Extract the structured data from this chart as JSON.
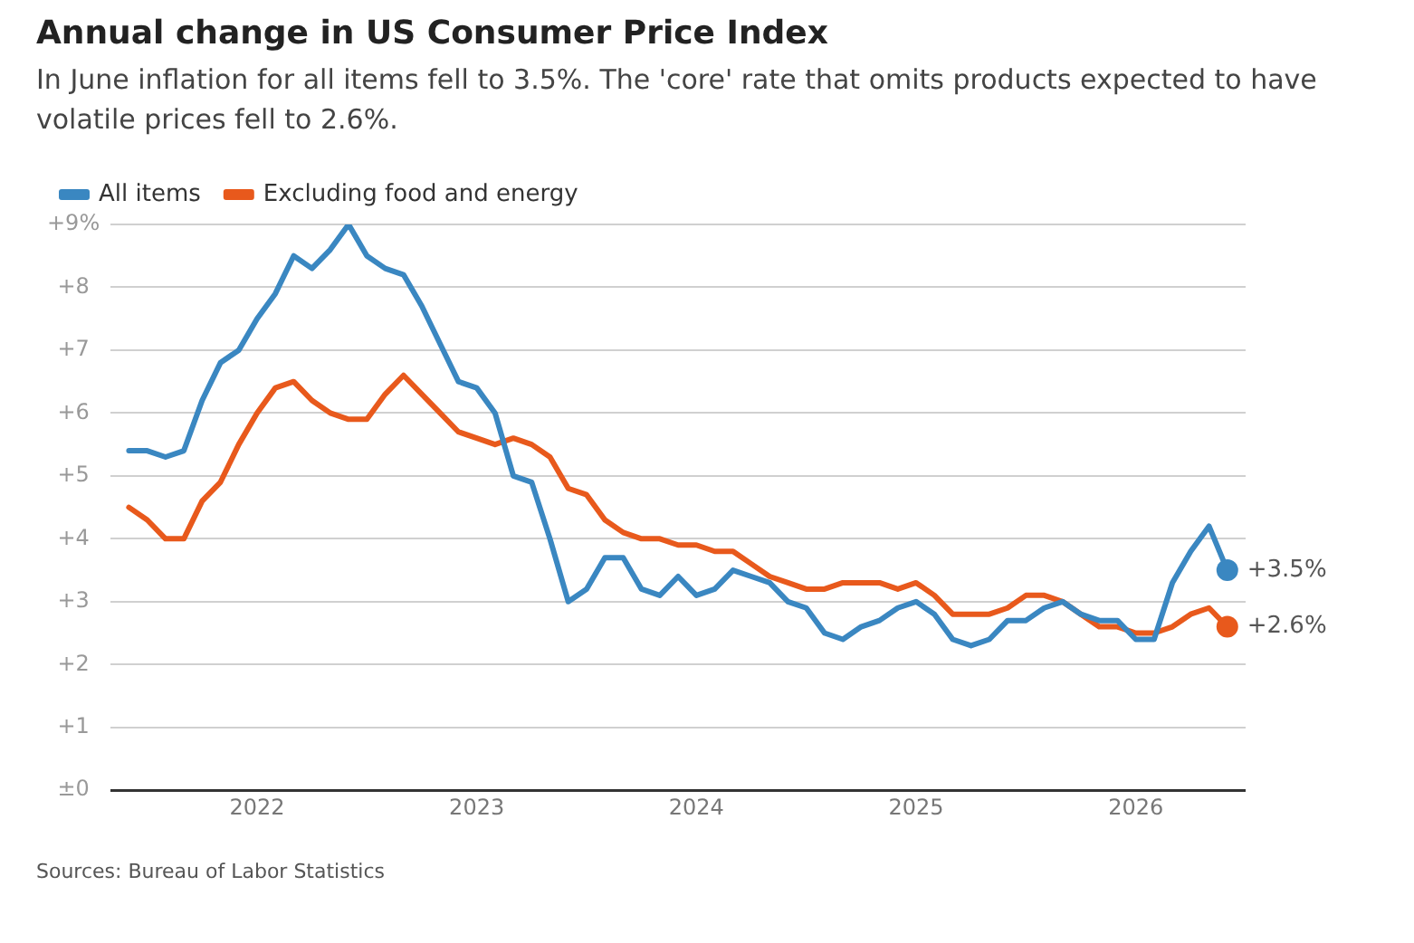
{
  "chart_data": {
    "type": "line",
    "title": "Annual change in US Consumer Price Index",
    "subtitle": "In June inflation for all items fell to 3.5%. The 'core' rate that omits products expected to have volatile prices fell to 2.6%.",
    "x": [
      "2021-06",
      "2021-07",
      "2021-08",
      "2021-09",
      "2021-10",
      "2021-11",
      "2021-12",
      "2022-01",
      "2022-02",
      "2022-03",
      "2022-04",
      "2022-05",
      "2022-06",
      "2022-07",
      "2022-08",
      "2022-09",
      "2022-10",
      "2022-11",
      "2022-12",
      "2023-01",
      "2023-02",
      "2023-03",
      "2023-04",
      "2023-05",
      "2023-06",
      "2023-07",
      "2023-08",
      "2023-09",
      "2023-10",
      "2023-11",
      "2023-12",
      "2024-01",
      "2024-02",
      "2024-03",
      "2024-04",
      "2024-05",
      "2024-06",
      "2024-07",
      "2024-08",
      "2024-09",
      "2024-10",
      "2024-11",
      "2024-12",
      "2025-01",
      "2025-02",
      "2025-03",
      "2025-04",
      "2025-05",
      "2025-06",
      "2025-07",
      "2025-08",
      "2025-09",
      "2025-10",
      "2025-11",
      "2025-12",
      "2026-01",
      "2026-02",
      "2026-03",
      "2026-04",
      "2026-05",
      "2026-06"
    ],
    "series": [
      {
        "name": "All items",
        "color": "#3a87c1",
        "values": [
          5.4,
          5.4,
          5.3,
          5.4,
          6.2,
          6.8,
          7.0,
          7.5,
          7.9,
          8.5,
          8.3,
          8.6,
          9.0,
          8.5,
          8.3,
          8.2,
          7.7,
          7.1,
          6.5,
          6.4,
          6.0,
          5.0,
          4.9,
          4.0,
          3.0,
          3.2,
          3.7,
          3.7,
          3.2,
          3.1,
          3.4,
          3.1,
          3.2,
          3.5,
          3.4,
          3.3,
          3.0,
          2.9,
          2.5,
          2.4,
          2.6,
          2.7,
          2.9,
          3.0,
          2.8,
          2.4,
          2.3,
          2.4,
          2.7,
          2.7,
          2.9,
          3.0,
          2.8,
          2.7,
          2.7,
          2.4,
          2.4,
          3.3,
          3.8,
          4.2,
          3.5
        ],
        "value_labels": [
          null,
          null,
          null,
          null,
          null,
          null,
          null,
          null,
          null,
          null,
          null,
          null,
          null,
          null,
          null,
          null,
          null,
          null,
          null,
          null,
          null,
          null,
          null,
          null,
          null,
          null,
          null,
          null,
          null,
          null,
          null,
          null,
          null,
          null,
          null,
          null,
          null,
          null,
          null,
          null,
          null,
          null,
          null,
          null,
          null,
          null,
          null,
          null,
          null,
          null,
          null,
          null,
          null,
          null,
          null,
          null,
          null,
          null,
          null,
          null,
          "+3.5%"
        ]
      },
      {
        "name": "Excluding food and energy",
        "color": "#e8591c",
        "values": [
          4.5,
          4.3,
          4.0,
          4.0,
          4.6,
          4.9,
          5.5,
          6.0,
          6.4,
          6.5,
          6.2,
          6.0,
          5.9,
          5.9,
          6.3,
          6.6,
          6.3,
          6.0,
          5.7,
          5.6,
          5.5,
          5.6,
          5.5,
          5.3,
          4.8,
          4.7,
          4.3,
          4.1,
          4.0,
          4.0,
          3.9,
          3.9,
          3.8,
          3.8,
          3.6,
          3.4,
          3.3,
          3.2,
          3.2,
          3.3,
          3.3,
          3.3,
          3.2,
          3.3,
          3.1,
          2.8,
          2.8,
          2.8,
          2.9,
          3.1,
          3.1,
          3.0,
          2.8,
          2.6,
          2.6,
          2.5,
          2.5,
          2.6,
          2.8,
          2.9,
          2.6
        ],
        "value_labels": [
          null,
          null,
          null,
          null,
          null,
          null,
          null,
          null,
          null,
          null,
          null,
          null,
          null,
          null,
          null,
          null,
          null,
          null,
          null,
          null,
          null,
          null,
          null,
          null,
          null,
          null,
          null,
          null,
          null,
          null,
          null,
          null,
          null,
          null,
          null,
          null,
          null,
          null,
          null,
          null,
          null,
          null,
          null,
          null,
          null,
          null,
          null,
          null,
          null,
          null,
          null,
          null,
          null,
          null,
          null,
          null,
          null,
          null,
          null,
          null,
          "+2.6%"
        ]
      }
    ],
    "xlim": [
      "2021-05",
      "2026-07"
    ],
    "xticks": [
      {
        "value": "2022",
        "label": "2022"
      },
      {
        "value": "2023",
        "label": "2023"
      },
      {
        "value": "2024",
        "label": "2024"
      },
      {
        "value": "2025",
        "label": "2025"
      },
      {
        "value": "2026",
        "label": "2026"
      }
    ],
    "ylim": [
      0,
      9
    ],
    "yticks": [
      {
        "value": 0,
        "label": "±0"
      },
      {
        "value": 1,
        "label": "+1"
      },
      {
        "value": 2,
        "label": "+2"
      },
      {
        "value": 3,
        "label": "+3"
      },
      {
        "value": 4,
        "label": "+4"
      },
      {
        "value": 5,
        "label": "+5"
      },
      {
        "value": 6,
        "label": "+6"
      },
      {
        "value": 7,
        "label": "+7"
      },
      {
        "value": 8,
        "label": "+8"
      },
      {
        "value": 9,
        "label": "+9%"
      }
    ],
    "grid": "y",
    "legend": "top left",
    "marker": "none",
    "line_style": "solid",
    "annotations": [
      "Sources: Bureau of Labor Statistics"
    ]
  }
}
